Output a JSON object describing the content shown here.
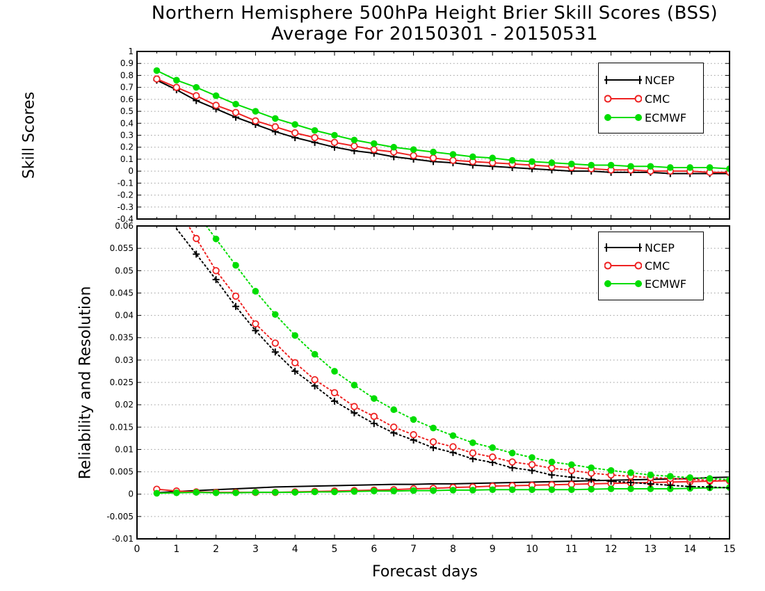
{
  "titles": {
    "line1": "Northern Hemisphere 500hPa Height Brier Skill Scores (BSS)",
    "line2": "Average For 20150301 - 20150531"
  },
  "colors": {
    "NCEP": "#000000",
    "CMC": "#ee2222",
    "ECMWF": "#00dd00"
  },
  "chart_data": [
    {
      "type": "line",
      "ylabel": "Skill Scores",
      "xlim": [
        0,
        15
      ],
      "ylim": [
        -0.4,
        1
      ],
      "x_ticks": [
        "0",
        "1",
        "2",
        "3",
        "4",
        "5",
        "6",
        "7",
        "8",
        "9",
        "10",
        "11",
        "12",
        "13",
        "14",
        "15"
      ],
      "y_ticks": [
        "-0.4",
        "-0.3",
        "-0.2",
        "-0.1",
        "0",
        "0.1",
        "0.2",
        "0.3",
        "0.4",
        "0.5",
        "0.6",
        "0.7",
        "0.8",
        "0.9",
        "1"
      ],
      "grid": true,
      "legend_position": "top-right",
      "x": [
        0.5,
        1,
        1.5,
        2,
        2.5,
        3,
        3.5,
        4,
        4.5,
        5,
        5.5,
        6,
        6.5,
        7,
        7.5,
        8,
        8.5,
        9,
        9.5,
        10,
        10.5,
        11,
        11.5,
        12,
        12.5,
        13,
        13.5,
        14,
        14.5,
        15
      ],
      "series": [
        {
          "name": "NCEP",
          "marker": "plus",
          "values": [
            0.76,
            0.68,
            0.59,
            0.52,
            0.45,
            0.39,
            0.33,
            0.28,
            0.24,
            0.2,
            0.17,
            0.15,
            0.12,
            0.1,
            0.08,
            0.07,
            0.05,
            0.04,
            0.03,
            0.02,
            0.01,
            0.0,
            0.0,
            -0.01,
            -0.01,
            -0.01,
            -0.02,
            -0.02,
            -0.02,
            -0.02
          ]
        },
        {
          "name": "CMC",
          "marker": "open-circle",
          "values": [
            0.77,
            0.7,
            0.63,
            0.55,
            0.49,
            0.42,
            0.37,
            0.32,
            0.28,
            0.24,
            0.21,
            0.18,
            0.16,
            0.13,
            0.11,
            0.09,
            0.08,
            0.07,
            0.06,
            0.05,
            0.04,
            0.03,
            0.02,
            0.01,
            0.01,
            0.0,
            0.0,
            0.0,
            -0.01,
            -0.01
          ]
        },
        {
          "name": "ECMWF",
          "marker": "filled-circle",
          "values": [
            0.84,
            0.76,
            0.7,
            0.63,
            0.56,
            0.5,
            0.44,
            0.39,
            0.34,
            0.3,
            0.26,
            0.23,
            0.2,
            0.18,
            0.16,
            0.14,
            0.12,
            0.11,
            0.09,
            0.08,
            0.07,
            0.06,
            0.05,
            0.05,
            0.04,
            0.04,
            0.03,
            0.03,
            0.03,
            0.02
          ]
        }
      ]
    },
    {
      "type": "line",
      "ylabel": "Reliability and Resolution",
      "xlabel": "Forecast days",
      "xlim": [
        0,
        15
      ],
      "ylim": [
        -0.01,
        0.06
      ],
      "x_ticks": [
        "0",
        "1",
        "2",
        "3",
        "4",
        "5",
        "6",
        "7",
        "8",
        "9",
        "10",
        "11",
        "12",
        "13",
        "14",
        "15"
      ],
      "y_ticks": [
        "-0.01",
        "-0.005",
        "0",
        "0.005",
        "0.01",
        "0.015",
        "0.02",
        "0.025",
        "0.03",
        "0.035",
        "0.04",
        "0.045",
        "0.05",
        "0.055",
        "0.06"
      ],
      "grid": true,
      "legend_position": "top-right",
      "x": [
        0.5,
        1,
        1.5,
        2,
        2.5,
        3,
        3.5,
        4,
        4.5,
        5,
        5.5,
        6,
        6.5,
        7,
        7.5,
        8,
        8.5,
        9,
        9.5,
        10,
        10.5,
        11,
        11.5,
        12,
        12.5,
        13,
        13.5,
        14,
        14.5,
        15
      ],
      "series": [
        {
          "name": "NCEP",
          "legend": true,
          "style": "solid",
          "marker": "none",
          "values": [
            0.0003,
            0.0006,
            0.0008,
            0.001,
            0.0012,
            0.0014,
            0.0016,
            0.0017,
            0.0018,
            0.0019,
            0.002,
            0.0021,
            0.0022,
            0.0022,
            0.0023,
            0.0023,
            0.0024,
            0.0025,
            0.0026,
            0.0027,
            0.0028,
            0.0029,
            0.003,
            0.0031,
            0.0032,
            0.0033,
            0.0034,
            0.0035,
            0.0037,
            0.0038
          ]
        },
        {
          "name": "CMC",
          "legend": true,
          "style": "solid",
          "marker": "open-circle",
          "values": [
            0.0011,
            0.0007,
            0.0005,
            0.0004,
            0.0004,
            0.0004,
            0.0004,
            0.0005,
            0.0006,
            0.0007,
            0.0008,
            0.0009,
            0.001,
            0.0012,
            0.0013,
            0.0015,
            0.0016,
            0.0018,
            0.0019,
            0.002,
            0.0021,
            0.0022,
            0.0023,
            0.0024,
            0.0025,
            0.0026,
            0.0027,
            0.0028,
            0.0029,
            0.003
          ]
        },
        {
          "name": "ECMWF",
          "legend": true,
          "style": "solid",
          "marker": "filled-circle",
          "values": [
            0.0002,
            0.0003,
            0.0004,
            0.0003,
            0.0003,
            0.0004,
            0.0004,
            0.0004,
            0.0005,
            0.0005,
            0.0006,
            0.0007,
            0.0007,
            0.0008,
            0.0008,
            0.0009,
            0.0009,
            0.001,
            0.001,
            0.001,
            0.001,
            0.001,
            0.0011,
            0.0012,
            0.0012,
            0.0012,
            0.0012,
            0.0013,
            0.0014,
            0.0015
          ]
        },
        {
          "name": "NCEP",
          "legend": false,
          "style": "dotted",
          "marker": "plus",
          "values": [
            null,
            null,
            0.0537,
            0.048,
            0.042,
            0.0366,
            0.0318,
            0.0275,
            0.0242,
            0.0208,
            0.0182,
            0.0158,
            0.0137,
            0.0121,
            0.0104,
            0.0093,
            0.0079,
            0.0071,
            0.0059,
            0.0053,
            0.0043,
            0.0038,
            0.0033,
            0.0029,
            0.0026,
            0.0023,
            0.002,
            0.0017,
            0.0016,
            0.0014
          ]
        },
        {
          "name": "CMC",
          "legend": false,
          "style": "dotted",
          "marker": "open-circle",
          "values": [
            null,
            null,
            0.0572,
            0.05,
            0.0443,
            0.0381,
            0.0338,
            0.0294,
            0.0256,
            0.0227,
            0.0196,
            0.0174,
            0.015,
            0.0133,
            0.0117,
            0.0106,
            0.0092,
            0.0083,
            0.0072,
            0.0066,
            0.0058,
            0.0053,
            0.0047,
            0.0043,
            0.004,
            0.0037,
            0.0035,
            0.0033,
            0.0031,
            0.003
          ]
        },
        {
          "name": "ECMWF",
          "legend": false,
          "style": "dotted",
          "marker": "filled-circle",
          "values": [
            null,
            null,
            null,
            0.0571,
            0.0512,
            0.0454,
            0.0402,
            0.0355,
            0.0313,
            0.0275,
            0.0244,
            0.0214,
            0.0189,
            0.0167,
            0.0148,
            0.0131,
            0.0115,
            0.0104,
            0.0092,
            0.0082,
            0.0072,
            0.0066,
            0.0059,
            0.0053,
            0.0048,
            0.0043,
            0.004,
            0.0037,
            0.0035,
            0.0032
          ]
        }
      ]
    }
  ]
}
